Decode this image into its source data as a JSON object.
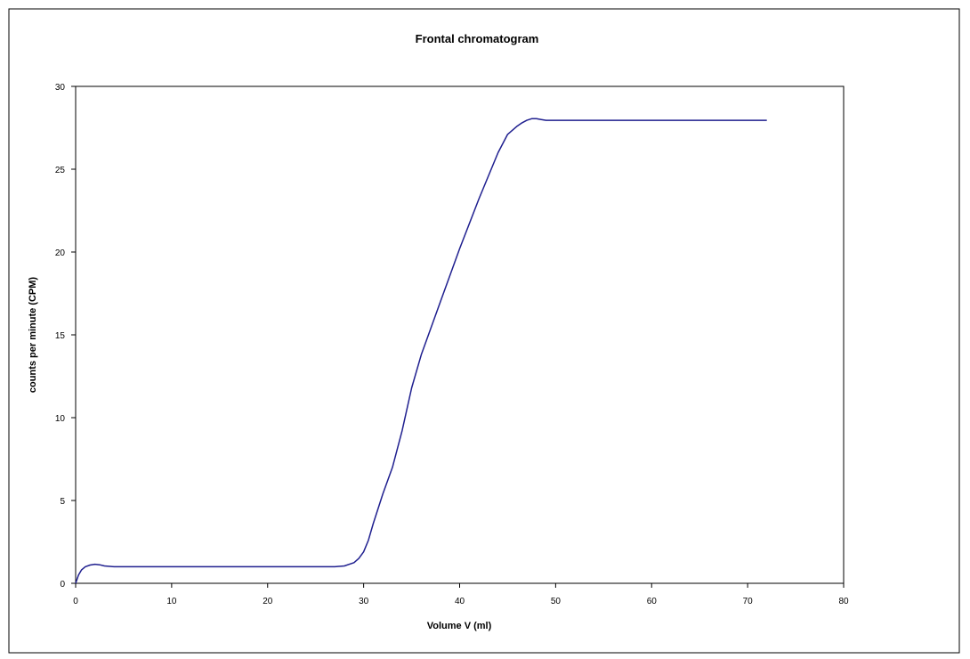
{
  "chart_data": {
    "type": "line",
    "title": "Frontal chromatogram",
    "xlabel": "Volume V (ml)",
    "ylabel": "counts per minute (CPM)",
    "xlim": [
      0,
      80
    ],
    "ylim": [
      0,
      30
    ],
    "x_ticks": [
      0,
      10,
      20,
      30,
      40,
      50,
      60,
      70,
      80
    ],
    "y_ticks": [
      0,
      5,
      10,
      15,
      20,
      25,
      30
    ],
    "grid": false,
    "legend": "none",
    "series": [
      {
        "color": "#1f1f8f",
        "x": [
          0,
          0.3,
          0.6,
          1,
          1.5,
          2,
          2.5,
          3,
          4,
          5,
          10,
          15,
          20,
          25,
          27,
          28,
          29,
          29.5,
          30,
          30.5,
          31,
          32,
          33,
          34,
          35,
          36,
          38,
          40,
          42,
          44,
          45,
          46,
          46.5,
          47,
          47.5,
          48,
          48.5,
          49,
          50,
          55,
          60,
          65,
          70,
          72
        ],
        "y": [
          0,
          0.5,
          0.8,
          1.0,
          1.1,
          1.15,
          1.12,
          1.05,
          1.0,
          1.0,
          1.0,
          1.0,
          1.0,
          1.0,
          1.0,
          1.05,
          1.25,
          1.5,
          1.9,
          2.6,
          3.6,
          5.4,
          7.0,
          9.2,
          11.8,
          13.8,
          17.0,
          20.2,
          23.2,
          26.0,
          27.1,
          27.6,
          27.8,
          27.95,
          28.05,
          28.05,
          28.0,
          27.95,
          27.95,
          27.95,
          27.95,
          27.95,
          27.95,
          27.95
        ]
      }
    ]
  }
}
